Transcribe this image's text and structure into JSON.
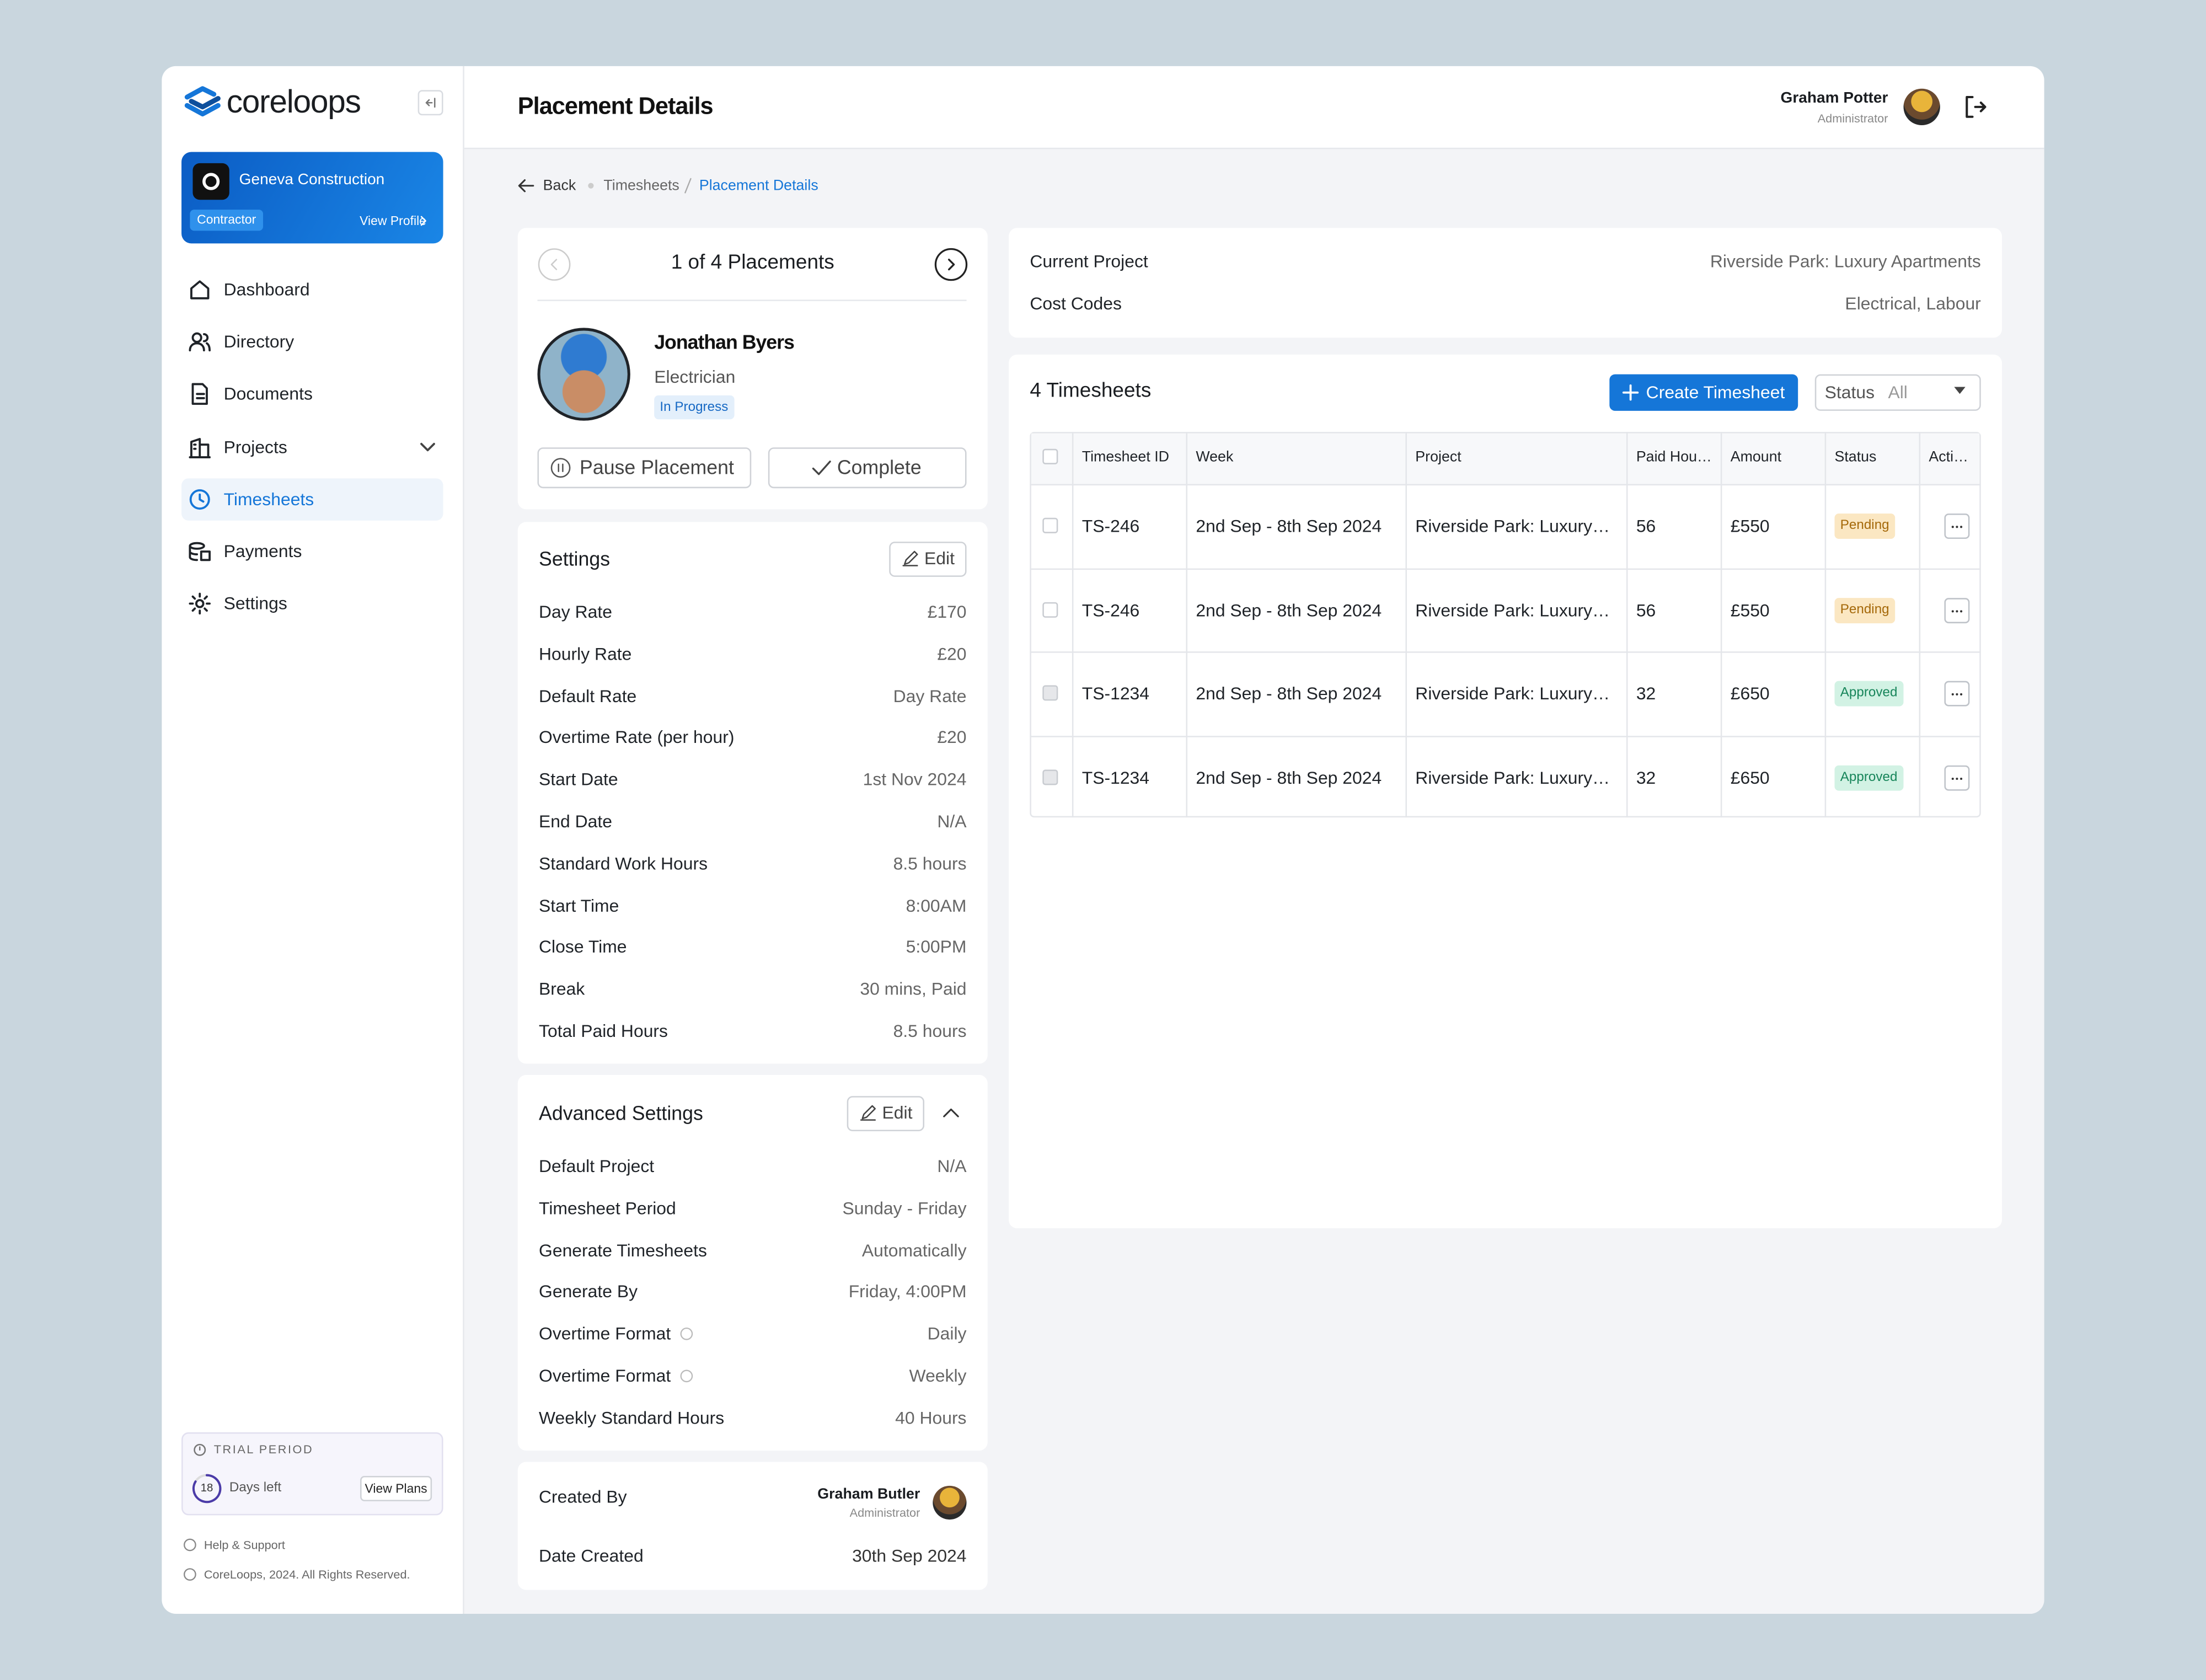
{
  "sidebar": {
    "brand": "coreloops",
    "org": {
      "name": "Geneva Construction",
      "role": "Contractor",
      "link": "View Profile"
    },
    "nav": [
      "Dashboard",
      "Directory",
      "Documents",
      "Projects",
      "Timesheets",
      "Payments",
      "Settings"
    ],
    "trial": {
      "label": "TRIAL PERIOD",
      "days": 18,
      "days_text": "Days left",
      "button": "View Plans"
    },
    "help": "Help & Support",
    "copyright": "CoreLoops, 2024. All Rights Reserved."
  },
  "header": {
    "title": "Placement Details",
    "user": {
      "name": "Graham Potter",
      "role": "Administrator"
    }
  },
  "breadcrumb": {
    "back": "Back",
    "items": [
      "Timesheets",
      "Placement Details"
    ]
  },
  "placement": {
    "pager": "1 of 4 Placements",
    "name": "Jonathan Byers",
    "job": "Electrician",
    "status": "In Progress",
    "actions": [
      "Pause Placement",
      "Complete"
    ]
  },
  "settings": {
    "title": "Settings",
    "edit": "Edit",
    "rows": [
      [
        "Day Rate",
        "£170"
      ],
      [
        "Hourly Rate",
        "£20"
      ],
      [
        "Default Rate",
        "Day Rate"
      ],
      [
        "Overtime Rate (per hour)",
        "£20"
      ],
      [
        "Start Date",
        "1st Nov 2024"
      ],
      [
        "End Date",
        "N/A"
      ],
      [
        "Standard Work Hours",
        "8.5 hours"
      ],
      [
        "Start Time",
        "8:00AM"
      ],
      [
        "Close Time",
        "5:00PM"
      ],
      [
        "Break",
        "30 mins, Paid"
      ],
      [
        "Total Paid Hours",
        "8.5 hours"
      ]
    ]
  },
  "advanced": {
    "title": "Advanced Settings",
    "edit": "Edit",
    "rows": [
      [
        "Default Project",
        "N/A"
      ],
      [
        "Timesheet Period",
        "Sunday - Friday"
      ],
      [
        "Generate Timesheets",
        "Automatically"
      ],
      [
        "Generate By",
        "Friday, 4:00PM"
      ],
      [
        "Overtime Format",
        "Daily"
      ],
      [
        "Overtime Format",
        "Weekly"
      ],
      [
        "Weekly Standard Hours",
        "40 Hours"
      ]
    ]
  },
  "created": {
    "label": "Created By",
    "name": "Graham Butler",
    "role": "Administrator",
    "date_label": "Date Created",
    "date": "30th Sep 2024"
  },
  "project": {
    "rows": [
      [
        "Current Project",
        "Riverside Park: Luxury Apartments"
      ],
      [
        "Cost Codes",
        "Electrical, Labour"
      ]
    ]
  },
  "timesheets": {
    "title": "4 Timesheets",
    "create": "Create Timesheet",
    "filter": {
      "label": "Status",
      "value": "All"
    },
    "columns": [
      "Timesheet ID",
      "Week",
      "Project",
      "Paid Hou…",
      "Amount",
      "Status",
      "Acti…"
    ],
    "rows": [
      {
        "id": "TS-246",
        "week": "2nd Sep - 8th Sep 2024",
        "project": "Riverside Park: Luxury…",
        "hours": 56,
        "amount": "£550",
        "status": "Pending",
        "status_bg": "#fbe7c2",
        "status_color": "#a5690a"
      },
      {
        "id": "TS-246",
        "week": "2nd Sep - 8th Sep 2024",
        "project": "Riverside Park: Luxury…",
        "hours": 56,
        "amount": "£550",
        "status": "Pending",
        "status_bg": "#fbe7c2",
        "status_color": "#a5690a"
      },
      {
        "id": "TS-1234",
        "week": "2nd Sep - 8th Sep 2024",
        "project": "Riverside Park: Luxury…",
        "hours": 32,
        "amount": "£650",
        "status": "Approved",
        "status_bg": "#d2f2e4",
        "status_color": "#17855a"
      },
      {
        "id": "TS-1234",
        "week": "2nd Sep - 8th Sep 2024",
        "project": "Riverside Park: Luxury…",
        "hours": 32,
        "amount": "£650",
        "status": "Approved",
        "status_bg": "#d2f2e4",
        "status_color": "#17855a"
      }
    ]
  }
}
